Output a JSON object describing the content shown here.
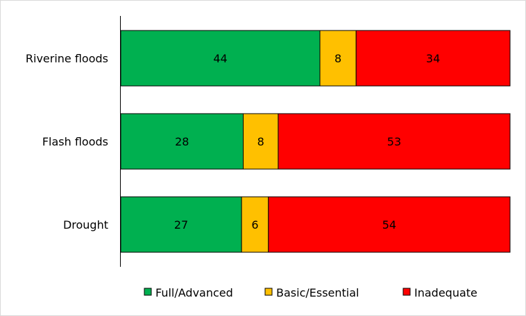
{
  "chart_data": {
    "type": "bar",
    "orientation": "horizontal",
    "stacked": true,
    "categories": [
      "Riverine floods",
      "Flash floods",
      "Drought"
    ],
    "series": [
      {
        "name": "Full/Advanced",
        "values": [
          44,
          28,
          27
        ],
        "color": "#00b050"
      },
      {
        "name": "Basic/Essential",
        "values": [
          8,
          8,
          6
        ],
        "color": "#ffc000"
      },
      {
        "name": "Inadequate",
        "values": [
          34,
          53,
          54
        ],
        "color": "#ff0000"
      }
    ],
    "legend_position": "bottom",
    "grid": false
  }
}
